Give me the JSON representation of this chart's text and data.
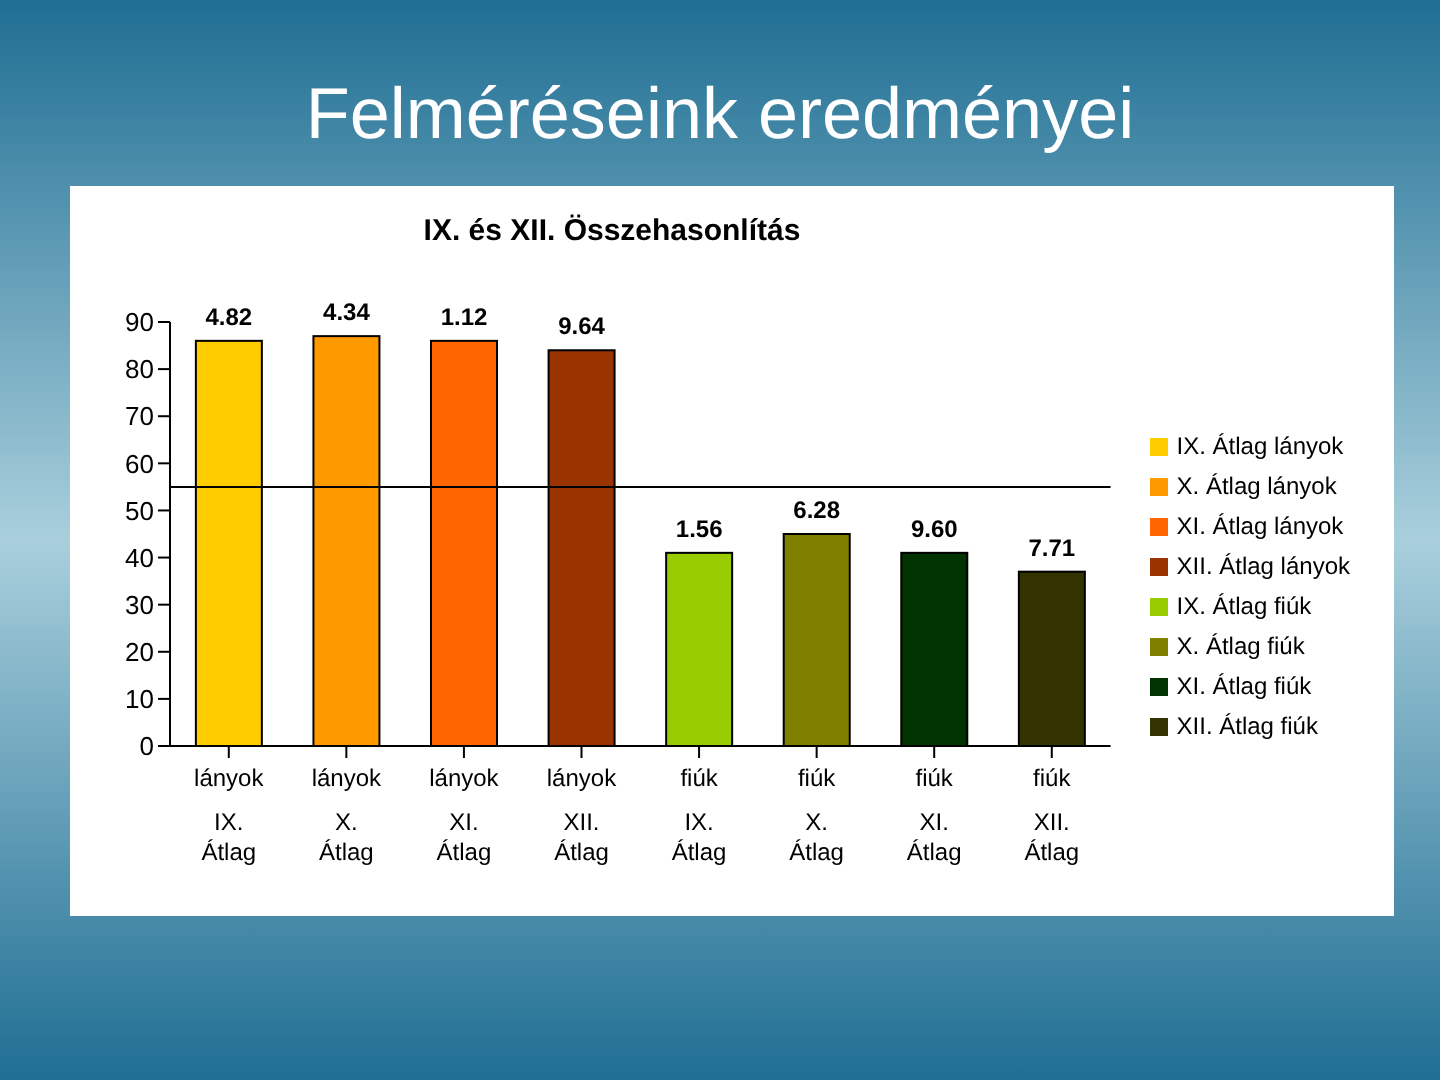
{
  "chart_data": {
    "type": "bar",
    "title": "Felméréseink eredményei",
    "subtitle": "IX. és XII. Összehasonlítás",
    "categories": [
      "lányok IX. Átlag",
      "lányok X. Átlag",
      "lányok XI. Átlag",
      "lányok XII. Átlag",
      "fiúk IX. Átlag",
      "fiúk X. Átlag",
      "fiúk XI. Átlag",
      "fiúk XII. Átlag"
    ],
    "series": [
      {
        "name": "IX. Átlag lányok",
        "color": "#ffcc00",
        "values": [
          86,
          null,
          null,
          null,
          null,
          null,
          null,
          null
        ]
      },
      {
        "name": "X. Átlag lányok",
        "color": "#ff9900",
        "values": [
          null,
          87,
          null,
          null,
          null,
          null,
          null,
          null
        ]
      },
      {
        "name": "XI. Átlag lányok",
        "color": "#ff6600",
        "values": [
          null,
          null,
          86,
          null,
          null,
          null,
          null,
          null
        ]
      },
      {
        "name": "XII. Átlag lányok",
        "color": "#993300",
        "values": [
          null,
          null,
          null,
          84,
          null,
          null,
          null,
          null
        ]
      },
      {
        "name": "IX. Átlag fiúk",
        "color": "#99cc00",
        "values": [
          null,
          null,
          null,
          null,
          41,
          null,
          null,
          null
        ]
      },
      {
        "name": "X. Átlag fiúk",
        "color": "#808000",
        "values": [
          null,
          null,
          null,
          null,
          null,
          45,
          null,
          null
        ]
      },
      {
        "name": "XI. Átlag fiúk",
        "color": "#003300",
        "values": [
          null,
          null,
          null,
          null,
          null,
          null,
          41,
          null
        ]
      },
      {
        "name": "XII. Átlag fiúk",
        "color": "#333300",
        "values": [
          null,
          null,
          null,
          null,
          null,
          null,
          null,
          37
        ]
      }
    ],
    "value_labels": [
      "4.82",
      "4.34",
      "1.12",
      "9.64",
      "1.56",
      "6.28",
      "9.60",
      "7.71"
    ],
    "ylim": [
      0,
      90
    ],
    "yticks": [
      0,
      10,
      20,
      30,
      40,
      50,
      60,
      70,
      80,
      90
    ],
    "ref_lines": [
      {
        "axis": "y",
        "value": 55,
        "color": "#000000"
      }
    ],
    "grid": false,
    "legend": "right"
  }
}
